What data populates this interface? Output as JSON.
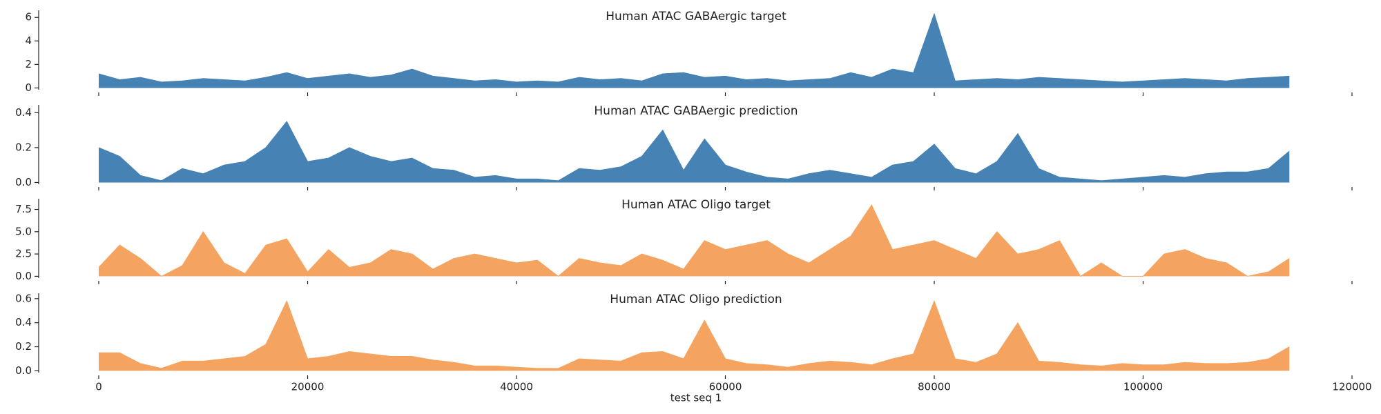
{
  "chart_data": [
    {
      "type": "area",
      "title": "Human ATAC GABAergic target",
      "color": "#4682b4",
      "x": [
        0,
        2000,
        4000,
        6000,
        8000,
        10000,
        12000,
        14000,
        16000,
        18000,
        20000,
        22000,
        24000,
        26000,
        28000,
        30000,
        32000,
        34000,
        36000,
        38000,
        40000,
        42000,
        44000,
        46000,
        48000,
        50000,
        52000,
        54000,
        56000,
        58000,
        60000,
        62000,
        64000,
        66000,
        68000,
        70000,
        72000,
        74000,
        76000,
        78000,
        80000,
        82000,
        84000,
        86000,
        88000,
        90000,
        92000,
        94000,
        96000,
        98000,
        100000,
        102000,
        104000,
        106000,
        108000,
        110000,
        112000,
        114000
      ],
      "values": [
        1.2,
        0.7,
        0.9,
        0.5,
        0.6,
        0.8,
        0.7,
        0.6,
        0.9,
        1.3,
        0.8,
        1.0,
        1.2,
        0.9,
        1.1,
        1.6,
        1.0,
        0.8,
        0.6,
        0.7,
        0.5,
        0.6,
        0.5,
        0.9,
        0.7,
        0.8,
        0.6,
        1.2,
        1.3,
        0.9,
        1.0,
        0.7,
        0.8,
        0.6,
        0.7,
        0.8,
        1.3,
        0.9,
        1.6,
        1.3,
        6.3,
        0.6,
        0.7,
        0.8,
        0.7,
        0.9,
        0.8,
        0.7,
        0.6,
        0.5,
        0.6,
        0.7,
        0.8,
        0.7,
        0.6,
        0.8,
        0.9,
        1.0
      ],
      "xlim": [
        0,
        120000
      ],
      "xticks": [
        0,
        20000,
        40000,
        60000,
        80000,
        100000,
        120000
      ],
      "ylim": [
        -0.15,
        6.6
      ],
      "yticks": [
        0,
        2,
        4,
        6
      ]
    },
    {
      "type": "area",
      "title": "Human ATAC GABAergic prediction",
      "color": "#4682b4",
      "x": [
        0,
        2000,
        4000,
        6000,
        8000,
        10000,
        12000,
        14000,
        16000,
        18000,
        20000,
        22000,
        24000,
        26000,
        28000,
        30000,
        32000,
        34000,
        36000,
        38000,
        40000,
        42000,
        44000,
        46000,
        48000,
        50000,
        52000,
        54000,
        56000,
        58000,
        60000,
        62000,
        64000,
        66000,
        68000,
        70000,
        72000,
        74000,
        76000,
        78000,
        80000,
        82000,
        84000,
        86000,
        88000,
        90000,
        92000,
        94000,
        96000,
        98000,
        100000,
        102000,
        104000,
        106000,
        108000,
        110000,
        112000,
        114000
      ],
      "values": [
        0.2,
        0.15,
        0.04,
        0.01,
        0.08,
        0.05,
        0.1,
        0.12,
        0.2,
        0.35,
        0.12,
        0.14,
        0.2,
        0.15,
        0.12,
        0.14,
        0.08,
        0.07,
        0.03,
        0.04,
        0.02,
        0.02,
        0.01,
        0.08,
        0.07,
        0.09,
        0.15,
        0.3,
        0.07,
        0.25,
        0.1,
        0.06,
        0.03,
        0.02,
        0.05,
        0.07,
        0.05,
        0.03,
        0.1,
        0.12,
        0.22,
        0.08,
        0.05,
        0.12,
        0.28,
        0.08,
        0.03,
        0.02,
        0.01,
        0.02,
        0.03,
        0.04,
        0.03,
        0.05,
        0.06,
        0.06,
        0.08,
        0.18
      ],
      "xlim": [
        0,
        120000
      ],
      "xticks": [
        0,
        20000,
        40000,
        60000,
        80000,
        100000,
        120000
      ],
      "ylim": [
        -0.01,
        0.445
      ],
      "yticks": [
        {
          "value": 0,
          "label": "0.0"
        },
        0.2,
        0.4
      ]
    },
    {
      "type": "area",
      "title": "Human ATAC Oligo target",
      "color": "#f4a460",
      "x": [
        0,
        2000,
        4000,
        6000,
        8000,
        10000,
        12000,
        14000,
        16000,
        18000,
        20000,
        22000,
        24000,
        26000,
        28000,
        30000,
        32000,
        34000,
        36000,
        38000,
        40000,
        42000,
        44000,
        46000,
        48000,
        50000,
        52000,
        54000,
        56000,
        58000,
        60000,
        62000,
        64000,
        66000,
        68000,
        70000,
        72000,
        74000,
        76000,
        78000,
        80000,
        82000,
        84000,
        86000,
        88000,
        90000,
        92000,
        94000,
        96000,
        98000,
        100000,
        102000,
        104000,
        106000,
        108000,
        110000,
        112000,
        114000
      ],
      "values": [
        1.0,
        3.5,
        2.0,
        0,
        1.2,
        5.0,
        1.5,
        0.3,
        3.5,
        4.2,
        0.5,
        3.0,
        1.0,
        1.5,
        3.0,
        2.5,
        0.8,
        2.0,
        2.5,
        2.0,
        1.5,
        1.8,
        0,
        2.0,
        1.5,
        1.2,
        2.5,
        1.8,
        0.8,
        4.0,
        3.0,
        3.5,
        4.0,
        2.5,
        1.5,
        3.0,
        4.5,
        8.0,
        3.0,
        3.5,
        4.0,
        3.0,
        2.0,
        5.0,
        2.5,
        3.0,
        4.0,
        0,
        1.5,
        0,
        0,
        2.5,
        3.0,
        2.0,
        1.5,
        0,
        0.5,
        2.0
      ],
      "xlim": [
        0,
        120000
      ],
      "xticks": [
        0,
        20000,
        40000,
        60000,
        80000,
        100000,
        120000
      ],
      "ylim": [
        -0.2,
        8.7
      ],
      "yticks": [
        {
          "value": 0,
          "label": "0.0"
        },
        2.5,
        {
          "value": 5,
          "label": "5.0"
        },
        7.5
      ]
    },
    {
      "type": "area",
      "title": "Human ATAC Oligo prediction",
      "color": "#f4a460",
      "xlabel": "test seq 1",
      "x": [
        0,
        2000,
        4000,
        6000,
        8000,
        10000,
        12000,
        14000,
        16000,
        18000,
        20000,
        22000,
        24000,
        26000,
        28000,
        30000,
        32000,
        34000,
        36000,
        38000,
        40000,
        42000,
        44000,
        46000,
        48000,
        50000,
        52000,
        54000,
        56000,
        58000,
        60000,
        62000,
        64000,
        66000,
        68000,
        70000,
        72000,
        74000,
        76000,
        78000,
        80000,
        82000,
        84000,
        86000,
        88000,
        90000,
        92000,
        94000,
        96000,
        98000,
        100000,
        102000,
        104000,
        106000,
        108000,
        110000,
        112000,
        114000
      ],
      "values": [
        0.15,
        0.15,
        0.06,
        0.02,
        0.08,
        0.08,
        0.1,
        0.12,
        0.22,
        0.58,
        0.1,
        0.12,
        0.16,
        0.14,
        0.12,
        0.12,
        0.09,
        0.07,
        0.04,
        0.04,
        0.03,
        0.02,
        0.02,
        0.1,
        0.09,
        0.08,
        0.15,
        0.16,
        0.1,
        0.42,
        0.1,
        0.06,
        0.05,
        0.03,
        0.06,
        0.08,
        0.07,
        0.05,
        0.1,
        0.14,
        0.58,
        0.1,
        0.07,
        0.14,
        0.4,
        0.08,
        0.07,
        0.05,
        0.04,
        0.06,
        0.05,
        0.05,
        0.07,
        0.06,
        0.06,
        0.07,
        0.1,
        0.2
      ],
      "xlim": [
        0,
        120000
      ],
      "xticks": [
        0,
        20000,
        40000,
        60000,
        80000,
        100000,
        120000
      ],
      "ylim": [
        -0.015,
        0.645
      ],
      "yticks": [
        {
          "value": 0,
          "label": "0.0"
        },
        0.2,
        0.4,
        0.6
      ]
    }
  ]
}
